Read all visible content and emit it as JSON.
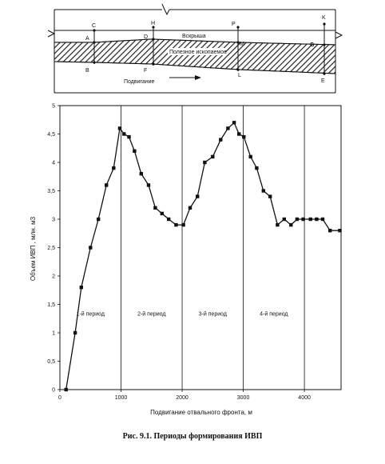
{
  "diagram": {
    "point_labels": [
      "C",
      "H",
      "P",
      "K",
      "A",
      "D",
      "M",
      "G",
      "B",
      "F",
      "L",
      "E"
    ],
    "overburden_label": "Вскрыша",
    "mineral_label": "Полезное ископаемое",
    "advance_label": "Подвигание"
  },
  "caption": "Рис. 9.1. Периоды формирования ИВП",
  "chart_data": {
    "type": "line",
    "title": "",
    "xlabel": "Подвигание отвального фронта, м",
    "ylabel": "Объем ИВП , млн. м3",
    "xlim": [
      0,
      4600
    ],
    "ylim": [
      0,
      5
    ],
    "x_ticks": [
      "0",
      "1000",
      "2000",
      "3000",
      "4000"
    ],
    "x_tick_values": [
      0,
      1000,
      2000,
      3000,
      4000
    ],
    "y_ticks": [
      "0",
      "0,5",
      "1",
      "1,5",
      "2",
      "2,5",
      "3",
      "3,5",
      "4",
      "4,5",
      "5"
    ],
    "y_tick_values": [
      0,
      0.5,
      1,
      1.5,
      2,
      2.5,
      3,
      3.5,
      4,
      4.5,
      5
    ],
    "grid": {
      "vertical": [
        1000,
        2000,
        3000,
        4000
      ],
      "horizontal": false
    },
    "period_labels": [
      {
        "text": "1-й период",
        "x": 500,
        "y": 1.3
      },
      {
        "text": "2-й период",
        "x": 1500,
        "y": 1.3
      },
      {
        "text": "3-й период",
        "x": 2500,
        "y": 1.3
      },
      {
        "text": "4-й период",
        "x": 3500,
        "y": 1.3
      }
    ],
    "series": [
      {
        "x": [
          100,
          250,
          350,
          500,
          630,
          760,
          880,
          980,
          1050,
          1130,
          1220,
          1330,
          1450,
          1560,
          1670,
          1780,
          1900,
          2020,
          2130,
          2250,
          2370,
          2500,
          2630,
          2750,
          2850,
          2930,
          3010,
          3120,
          3220,
          3330,
          3440,
          3560,
          3670,
          3780,
          3880,
          3980,
          4100,
          4200,
          4300,
          4420,
          4580
        ],
        "y": [
          0.0,
          1.0,
          1.8,
          2.5,
          3.0,
          3.6,
          3.9,
          4.6,
          4.5,
          4.45,
          4.2,
          3.8,
          3.6,
          3.2,
          3.1,
          3.0,
          2.9,
          2.9,
          3.2,
          3.4,
          4.0,
          4.1,
          4.4,
          4.6,
          4.7,
          4.5,
          4.45,
          4.1,
          3.9,
          3.5,
          3.4,
          2.9,
          3.0,
          2.9,
          3.0,
          3.0,
          3.0,
          3.0,
          3.0,
          2.8,
          2.8
        ]
      }
    ]
  }
}
